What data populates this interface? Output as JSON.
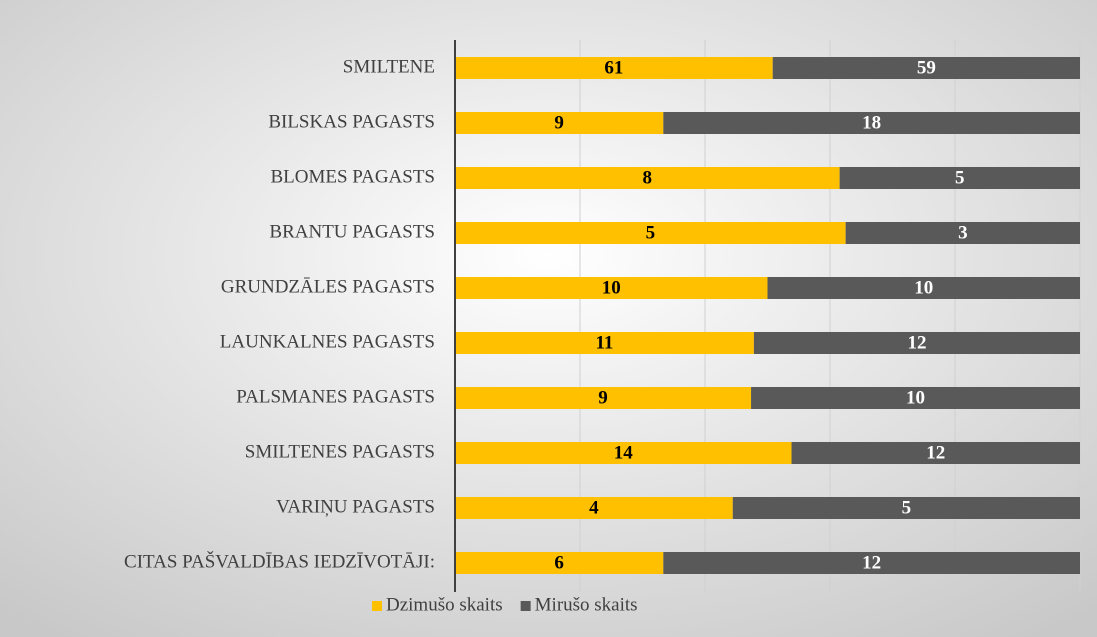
{
  "chart_data": {
    "type": "bar",
    "orientation": "horizontal",
    "stacking": "percent",
    "categories": [
      "SMILTENE",
      "BILSKAS PAGASTS",
      "BLOMES PAGASTS",
      "BRANTU PAGASTS",
      "GRUNDZĀLES PAGASTS",
      "LAUNKALNES  PAGASTS",
      "PALSMANES PAGASTS",
      "SMILTENES PAGASTS",
      "VARIŅU PAGASTS",
      "CITAS PAŠVALDĪBAS IEDZĪVOTĀJI:"
    ],
    "series": [
      {
        "name": "Dzimušo skaits",
        "color": "#ffc000",
        "label_color": "#000000",
        "values": [
          61,
          9,
          8,
          5,
          10,
          11,
          9,
          14,
          4,
          6
        ]
      },
      {
        "name": "Mirušo skaits",
        "color": "#595959",
        "label_color": "#ffffff",
        "values": [
          59,
          18,
          5,
          3,
          10,
          12,
          10,
          12,
          5,
          12
        ]
      }
    ],
    "xlim": [
      0,
      100
    ],
    "xticks": [
      0,
      20,
      40,
      60,
      80,
      100
    ],
    "grid": true,
    "legend": "bottom"
  }
}
